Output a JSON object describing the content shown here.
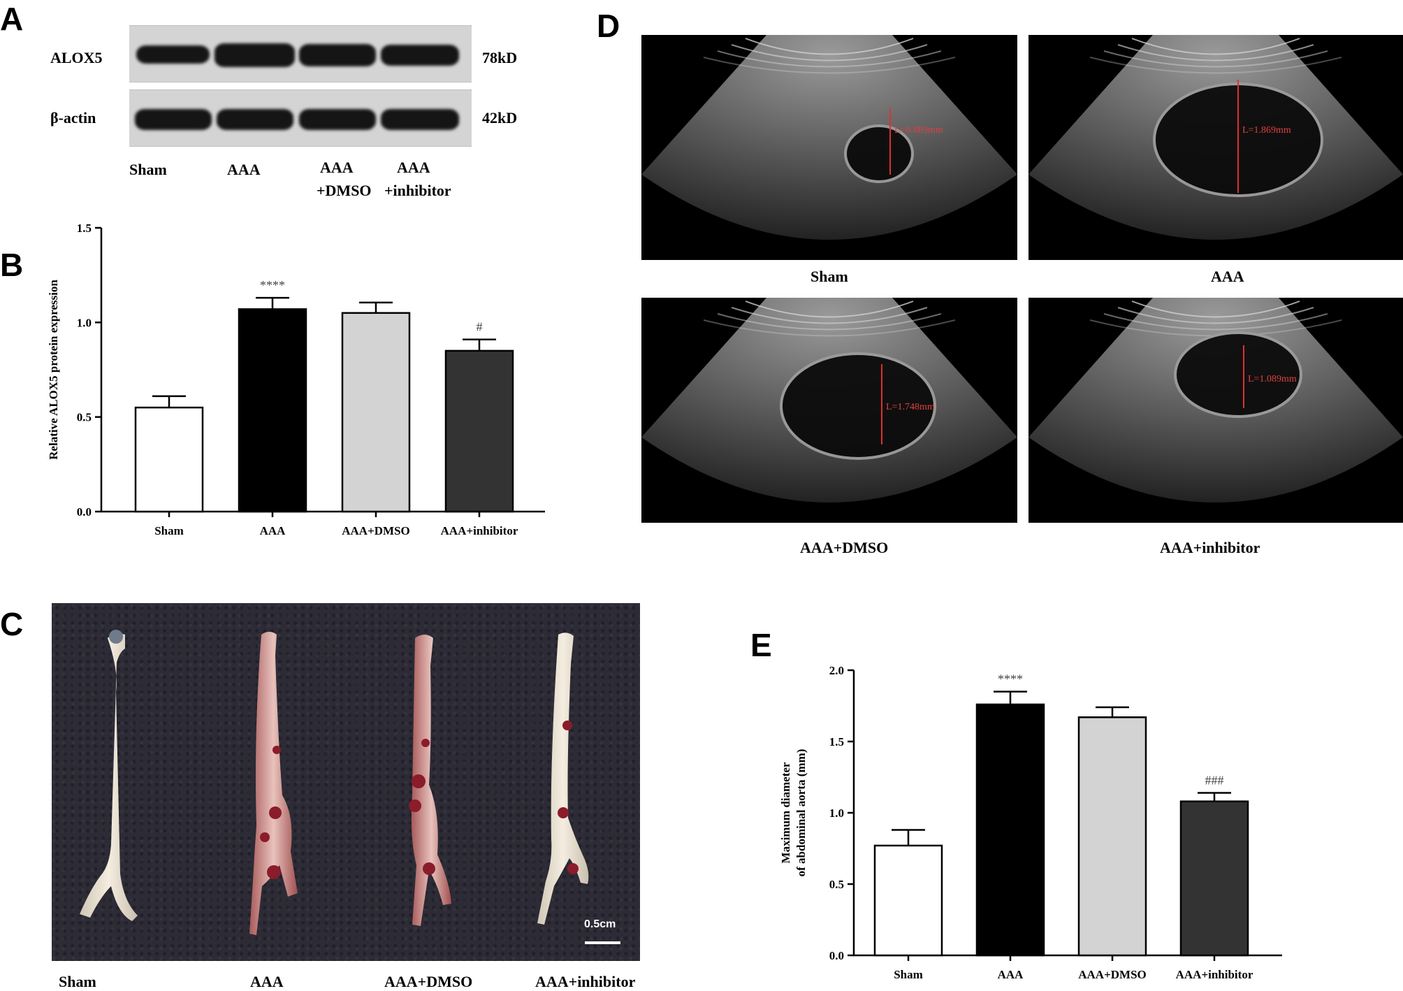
{
  "panels": {
    "A": {
      "letter": "A",
      "row_labels": [
        "ALOX5",
        "β-actin"
      ],
      "kd_labels": [
        "78kD",
        "42kD"
      ],
      "lane_labels": [
        [
          "Sham"
        ],
        [
          "AAA"
        ],
        [
          "AAA",
          "+DMSO"
        ],
        [
          "AAA",
          "+inhibitor"
        ]
      ]
    },
    "B": {
      "letter": "B"
    },
    "C": {
      "letter": "C",
      "scale_bar": "0.5cm",
      "labels": [
        "Sham",
        "AAA",
        "AAA+DMSO",
        "AAA+inhibitor"
      ]
    },
    "D": {
      "letter": "D",
      "images": [
        {
          "label": "Sham",
          "measurement": "L=0.889mm"
        },
        {
          "label": "AAA",
          "measurement": "L=1.869mm"
        },
        {
          "label": "AAA+DMSO",
          "measurement": "L=1.748mm"
        },
        {
          "label": "AAA+inhibitor",
          "measurement": "L=1.089mm"
        }
      ]
    },
    "E": {
      "letter": "E"
    }
  },
  "chart_data": [
    {
      "panel": "B",
      "type": "bar",
      "categories": [
        "Sham",
        "AAA",
        "AAA+DMSO",
        "AAA+inhibitor"
      ],
      "values": [
        0.55,
        1.07,
        1.05,
        0.85
      ],
      "errors": [
        0.06,
        0.06,
        0.055,
        0.06
      ],
      "annotations": [
        "",
        "****",
        "",
        "#"
      ],
      "colors": [
        "#ffffff",
        "#000000",
        "#d3d3d3",
        "#333333"
      ],
      "ylabel": "Relative ALOX5 protein expression",
      "xlabel": "",
      "ylim": [
        0,
        1.5
      ],
      "yticks": [
        "0.0",
        "0.5",
        "1.0",
        "1.5"
      ],
      "grid": false
    },
    {
      "panel": "E",
      "type": "bar",
      "categories": [
        "Sham",
        "AAA",
        "AAA+DMSO",
        "AAA+inhibitor"
      ],
      "values": [
        0.77,
        1.76,
        1.67,
        1.08
      ],
      "errors": [
        0.11,
        0.09,
        0.07,
        0.06
      ],
      "annotations": [
        "",
        "****",
        "",
        "###"
      ],
      "colors": [
        "#ffffff",
        "#000000",
        "#d3d3d3",
        "#333333"
      ],
      "ylabel_lines": [
        "Maximum diameter",
        "of abdominal aorta (mm)"
      ],
      "xlabel": "",
      "ylim": [
        0,
        2.0
      ],
      "yticks": [
        "0.0",
        "0.5",
        "1.0",
        "1.5",
        "2.0"
      ],
      "grid": false
    }
  ]
}
